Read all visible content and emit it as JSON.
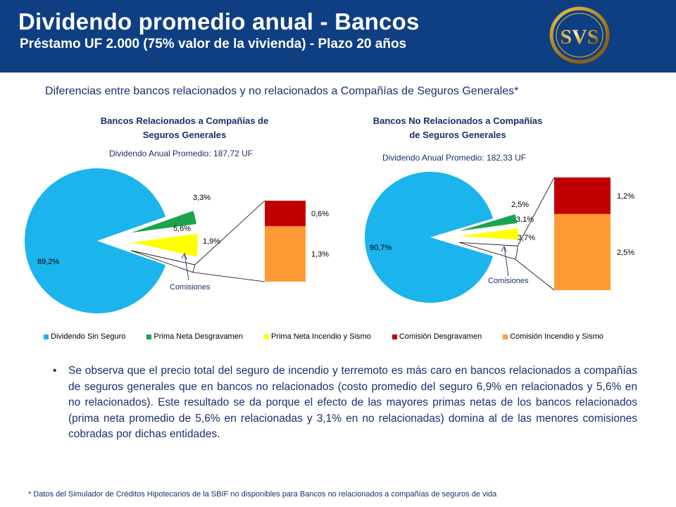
{
  "header": {
    "title": "Dividendo promedio anual - Bancos",
    "subtitle": "Préstamo UF 2.000 (75% valor de la vivienda) - Plazo 20 años",
    "logo_text": "SVS"
  },
  "section_subtitle": "Diferencias entre bancos relacionados y no relacionados a Compañías de Seguros Generales*",
  "colors": {
    "header_bg": "#0e3f82",
    "dividendo": "#1cb4ec",
    "prima_desgravamen": "#1aa44e",
    "prima_incendio": "#ffff00",
    "comision_desgravamen": "#c00000",
    "comision_incendio": "#ff9933",
    "text_blue": "#1b2f6b"
  },
  "chart_data": [
    {
      "type": "pie",
      "title_line1": "Bancos Relacionados a Compañías de",
      "title_line2": "Seguros Generales",
      "annotation": "Dividendo Anual Promedio: 187,72 UF",
      "slices": [
        {
          "name": "Dividendo Sin Seguro",
          "value": 89.2,
          "label": "89,2%"
        },
        {
          "name": "Prima Neta Desgravamen",
          "value": 3.3,
          "label": "3,3%"
        },
        {
          "name": "Prima Neta Incendio y Sismo",
          "value": 5.6,
          "label": "5,6%"
        },
        {
          "name": "Comisiones",
          "value": 1.9,
          "label": "1,9%"
        }
      ],
      "breakdown_label": "Comisiones",
      "breakdown": [
        {
          "name": "Comisión Desgravamen",
          "value": 0.6,
          "label": "0,6%"
        },
        {
          "name": "Comisión Incendio y Sismo",
          "value": 1.3,
          "label": "1,3%"
        }
      ]
    },
    {
      "type": "pie",
      "title_line1": "Bancos No Relacionados a Compañías",
      "title_line2": "de Seguros Generales",
      "annotation": "Dividendo Anual Promedio: 182,33 UF",
      "slices": [
        {
          "name": "Dividendo Sin Seguro",
          "value": 90.7,
          "label": "90,7%"
        },
        {
          "name": "Prima Neta Desgravamen",
          "value": 2.5,
          "label": "2,5%"
        },
        {
          "name": "Prima Neta Incendio y Sismo",
          "value": 3.1,
          "label": "3,1%"
        },
        {
          "name": "Comisiones",
          "value": 3.7,
          "label": "3,7%"
        }
      ],
      "breakdown_label": "Comisiones",
      "breakdown": [
        {
          "name": "Comisión Desgravamen",
          "value": 1.2,
          "label": "1,2%"
        },
        {
          "name": "Comisión Incendio y Sismo",
          "value": 2.5,
          "label": "2,5%"
        }
      ]
    }
  ],
  "legend": [
    {
      "label": "Dividendo Sin Seguro",
      "color": "#1cb4ec"
    },
    {
      "label": "Prima Neta Desgravamen",
      "color": "#1aa44e"
    },
    {
      "label": "Prima Neta Incendio y Sismo",
      "color": "#ffff00"
    },
    {
      "label": "Comisión Desgravamen",
      "color": "#c00000"
    },
    {
      "label": "Comisión Incendio y Sismo",
      "color": "#ff9933"
    }
  ],
  "bullet_text": "Se observa que el precio total del seguro de incendio y terremoto es más caro en bancos relacionados a compañías de seguros generales que en bancos no relacionados (costo promedio del seguro 6,9% en relacionados y 5,6% en no relacionados). Este resultado se da porque el efecto de las mayores primas netas de los bancos relacionados (prima neta promedio de 5,6% en relacionadas y 3,1% en no relacionadas) domina al de las menores comisiones cobradas por dichas entidades.",
  "footnote": "* Datos del Simulador de Créditos Hipotecarios de la SBIF no disponibles para Bancos no relacionados a compañías de seguros de vida"
}
